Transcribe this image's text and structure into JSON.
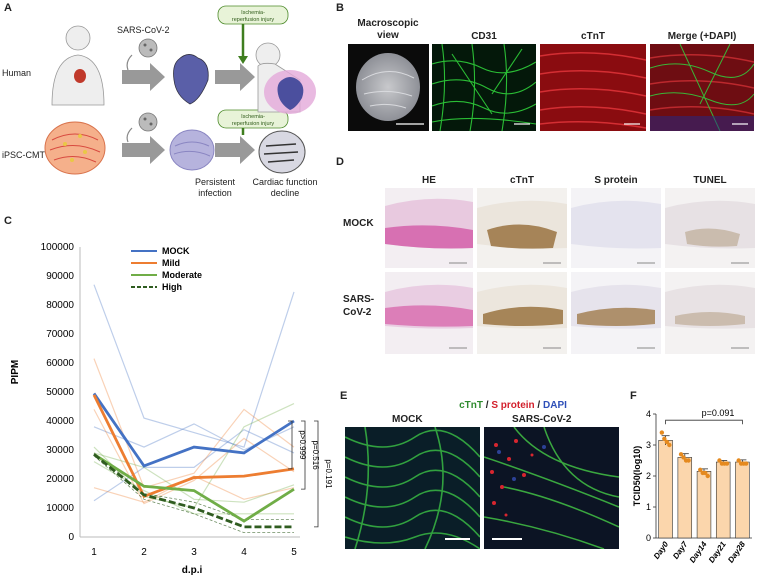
{
  "panels": {
    "A": "A",
    "B": "B",
    "C": "C",
    "D": "D",
    "E": "E",
    "F": "F"
  },
  "panelA": {
    "human_label": "Human",
    "ipsc_label": "iPSC-CMT",
    "virus_label": "SARS-CoV-2",
    "injury_label_1": "Ischemia-",
    "injury_label_2": "reperfusion injury",
    "persistent_1": "Persistent",
    "persistent_2": "infection",
    "cardiac_1": "Cardiac function",
    "cardiac_2": "decline"
  },
  "panelB": {
    "headers": [
      "Macroscopic view",
      "CD31",
      "cTnT",
      "Merge (+DAPI)"
    ],
    "header0_line1": "Macroscopic",
    "header0_line2": "view"
  },
  "panelD": {
    "headers": [
      "HE",
      "cTnT",
      "S protein",
      "TUNEL"
    ],
    "row1": "MOCK",
    "row2_line1": "SARS-",
    "row2_line2": "CoV-2"
  },
  "panelE": {
    "title_ctnt": "cTnT",
    "title_slash1": " / ",
    "title_s": "S protein",
    "title_slash2": " / ",
    "title_dapi": "DAPI",
    "mock": "MOCK",
    "sars": "SARS-CoV-2"
  },
  "chart_data": [
    {
      "type": "line",
      "panel": "C",
      "xlabel": "d.p.i",
      "ylabel": "PIPM",
      "x": [
        1,
        2,
        3,
        4,
        5
      ],
      "ylim": [
        0,
        100000
      ],
      "yticks": [
        0,
        10000,
        20000,
        30000,
        40000,
        50000,
        60000,
        70000,
        80000,
        90000,
        100000
      ],
      "series": [
        {
          "name": "MOCK",
          "color": "#4472c4",
          "dash": false,
          "values": [
            49500,
            24500,
            31000,
            29000,
            40000
          ]
        },
        {
          "name": "Mild",
          "color": "#ed7d31",
          "dash": false,
          "values": [
            49000,
            14000,
            20500,
            21000,
            23500
          ]
        },
        {
          "name": "Moderate",
          "color": "#70ad47",
          "dash": false,
          "values": [
            28500,
            17500,
            16000,
            5500,
            16500
          ]
        },
        {
          "name": "High",
          "color": "#2f5c20",
          "dash": true,
          "values": [
            28500,
            14500,
            10000,
            3500,
            3500
          ]
        }
      ],
      "individual_series": [
        {
          "color": "#4472c4",
          "values": [
            87000,
            41000,
            36000,
            31000,
            84500
          ]
        },
        {
          "color": "#4472c4",
          "values": [
            38000,
            31000,
            39000,
            30000,
            38000
          ]
        },
        {
          "color": "#4472c4",
          "values": [
            12500,
            24000,
            24000,
            37000,
            29000
          ]
        },
        {
          "color": "#ed7d31",
          "values": [
            61500,
            17000,
            22000,
            44000,
            31000
          ]
        },
        {
          "color": "#ed7d31",
          "values": [
            44000,
            11500,
            19500,
            34000,
            22500
          ]
        },
        {
          "color": "#ed7d31",
          "values": [
            17000,
            12000,
            21000,
            13000,
            17000
          ]
        },
        {
          "color": "#70ad47",
          "values": [
            31000,
            14000,
            10000,
            38000,
            46000
          ]
        },
        {
          "color": "#70ad47",
          "values": [
            26000,
            16000,
            8000,
            8000,
            8000
          ]
        },
        {
          "color": "#70ad47",
          "values": [
            29000,
            24000,
            13000,
            12000,
            18000
          ]
        },
        {
          "color": "#2f5c20",
          "dash": true,
          "values": [
            29000,
            15000,
            12000,
            6000,
            6000
          ]
        },
        {
          "color": "#2f5c20",
          "dash": true,
          "values": [
            28000,
            13000,
            8000,
            1500,
            1500
          ]
        }
      ],
      "pvalues": [
        "p>0.999",
        "p=0.516",
        "p=0.191"
      ]
    },
    {
      "type": "bar",
      "panel": "F",
      "categories": [
        "Day0",
        "Day7",
        "Day14",
        "Day21",
        "Day28"
      ],
      "values": [
        3.15,
        2.6,
        2.15,
        2.45,
        2.45
      ],
      "errors": [
        0.15,
        0.12,
        0.08,
        0.05,
        0.07
      ],
      "points": [
        [
          3.4,
          3.2,
          3.1,
          3.0
        ],
        [
          2.7,
          2.6,
          2.5,
          2.5
        ],
        [
          2.2,
          2.1,
          2.1,
          2.0
        ],
        [
          2.5,
          2.4,
          2.4,
          2.4
        ],
        [
          2.5,
          2.4,
          2.4,
          2.4
        ]
      ],
      "ylabel": "TCID50(log10)",
      "ylim": [
        0,
        4
      ],
      "yticks": [
        0,
        1,
        2,
        3,
        4
      ],
      "pvalue": "p=0.091",
      "bar_color": "#fbd6ac"
    }
  ]
}
